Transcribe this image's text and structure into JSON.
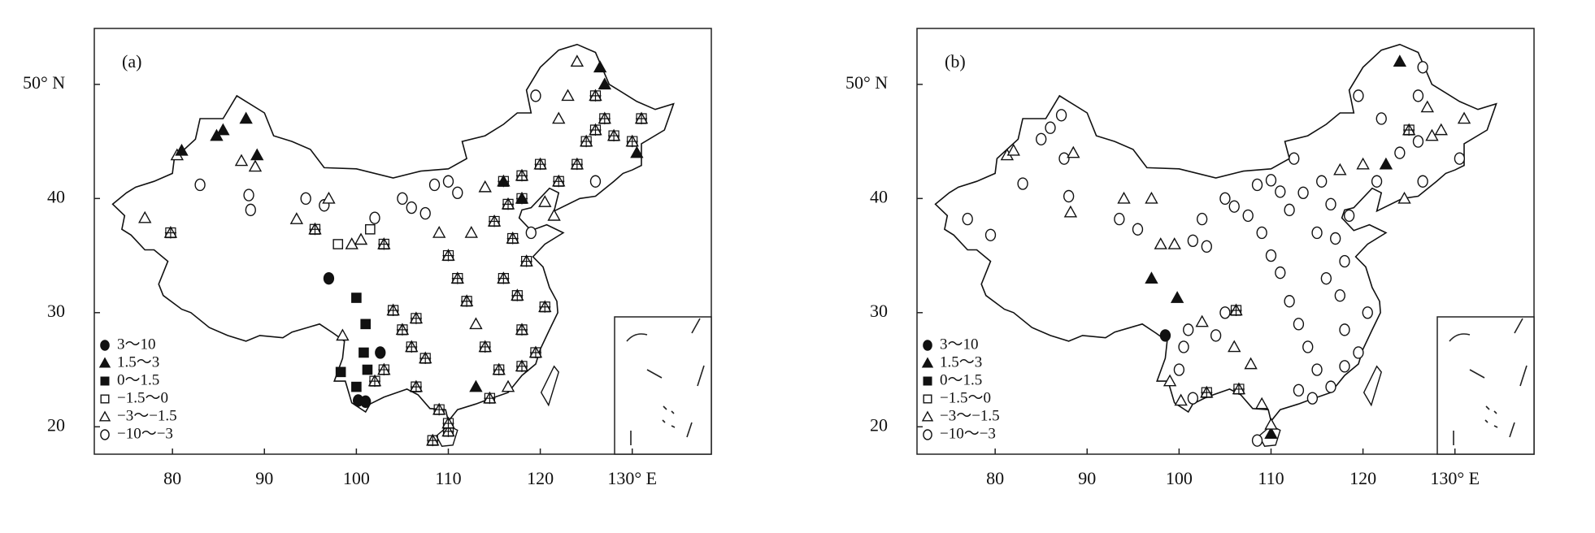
{
  "xlim": [
    71.5,
    138.6
  ],
  "ylim": [
    17.6,
    54.9
  ],
  "xticks": [
    80,
    90,
    100,
    110,
    120,
    {
      "value": 130,
      "label": "130° E"
    }
  ],
  "yticks": [
    20,
    30,
    40,
    {
      "value": 50,
      "label": "50° N"
    }
  ],
  "legend": [
    {
      "label": "3～10",
      "shape": "filled-circle"
    },
    {
      "label": "1.5～3",
      "shape": "filled-triangle"
    },
    {
      "label": "0～1.5",
      "shape": "filled-square"
    },
    {
      "label": "−1.5～0",
      "shape": "square"
    },
    {
      "label": "−3～−1.5",
      "shape": "triangle"
    },
    {
      "label": "−10～−3",
      "shape": "circle"
    }
  ],
  "panels": [
    {
      "label": "(a)",
      "stations": [
        [
          77,
          38.3,
          4
        ],
        [
          79.8,
          37,
          4,
          1
        ],
        [
          80.5,
          43.8,
          4
        ],
        [
          81,
          44.2,
          1
        ],
        [
          83,
          41.2,
          5
        ],
        [
          84.8,
          45.5,
          1
        ],
        [
          85.5,
          46,
          1
        ],
        [
          87.5,
          43.3,
          4
        ],
        [
          88,
          47,
          1
        ],
        [
          89,
          42.8,
          4
        ],
        [
          89.2,
          43.8,
          1
        ],
        [
          88.3,
          40.3,
          5
        ],
        [
          88.5,
          39,
          5
        ],
        [
          93.5,
          38.2,
          4
        ],
        [
          94.5,
          40,
          5
        ],
        [
          95.5,
          37.3,
          4,
          1
        ],
        [
          96.5,
          39.4,
          5
        ],
        [
          97,
          40,
          4
        ],
        [
          98,
          36,
          3
        ],
        [
          99.5,
          36,
          4
        ],
        [
          100.5,
          36.4,
          4
        ],
        [
          101.5,
          37.3,
          3
        ],
        [
          102,
          38.3,
          5
        ],
        [
          103,
          36,
          4,
          1
        ],
        [
          97,
          33,
          0
        ],
        [
          98.5,
          28,
          4
        ],
        [
          100,
          31.3,
          2
        ],
        [
          101,
          29,
          2
        ],
        [
          100.8,
          26.5,
          2
        ],
        [
          101.2,
          25,
          2
        ],
        [
          102.6,
          26.5,
          0
        ],
        [
          98.3,
          24.8,
          2
        ],
        [
          100,
          23.5,
          2
        ],
        [
          100.2,
          22.3,
          0
        ],
        [
          101,
          22.2,
          0
        ],
        [
          102,
          24,
          4,
          1
        ],
        [
          103,
          25,
          4,
          1
        ],
        [
          104,
          30.2,
          4,
          1
        ],
        [
          105,
          28.5,
          4,
          1
        ],
        [
          106.5,
          29.5,
          4,
          1
        ],
        [
          106,
          27,
          4,
          1
        ],
        [
          107.5,
          26,
          4,
          1
        ],
        [
          106.5,
          23.5,
          4,
          1
        ],
        [
          109,
          21.5,
          4,
          1
        ],
        [
          108.3,
          18.8,
          4,
          1
        ],
        [
          110,
          19.6,
          4,
          1
        ],
        [
          110,
          20.3,
          4,
          1
        ],
        [
          105,
          40,
          5
        ],
        [
          106,
          39.2,
          5
        ],
        [
          107.5,
          38.7,
          5
        ],
        [
          108.5,
          41.2,
          5
        ],
        [
          110,
          41.5,
          5
        ],
        [
          111,
          40.5,
          5
        ],
        [
          112.5,
          37,
          4
        ],
        [
          109,
          37,
          4
        ],
        [
          110,
          35,
          4,
          1
        ],
        [
          111,
          33,
          4,
          1
        ],
        [
          112,
          31,
          4,
          1
        ],
        [
          113,
          29,
          4
        ],
        [
          114,
          27,
          4,
          1
        ],
        [
          115.5,
          25,
          4,
          1
        ],
        [
          113,
          23.5,
          1
        ],
        [
          114.5,
          22.5,
          4,
          1
        ],
        [
          116.5,
          23.5,
          4
        ],
        [
          118,
          25.3,
          4,
          1
        ],
        [
          119.5,
          26.5,
          4,
          1
        ],
        [
          118,
          28.5,
          4,
          1
        ],
        [
          120.5,
          30.5,
          4,
          1
        ],
        [
          117.5,
          31.5,
          4,
          1
        ],
        [
          116,
          33,
          4,
          1
        ],
        [
          118.5,
          34.5,
          4,
          1
        ],
        [
          117,
          36.5,
          4,
          1
        ],
        [
          119,
          37,
          5
        ],
        [
          115,
          38,
          4,
          1
        ],
        [
          116.5,
          39.5,
          4,
          1
        ],
        [
          114,
          41,
          4
        ],
        [
          116,
          41.5,
          1,
          1
        ],
        [
          118,
          42,
          4,
          1
        ],
        [
          120,
          43,
          4,
          1
        ],
        [
          122,
          41.5,
          4,
          1
        ],
        [
          121.5,
          38.5,
          4
        ],
        [
          124,
          43,
          4,
          1
        ],
        [
          125,
          45,
          4,
          1
        ],
        [
          126,
          46,
          4,
          1
        ],
        [
          127,
          47,
          4,
          1
        ],
        [
          128,
          45.5,
          4,
          1
        ],
        [
          130,
          45,
          4,
          1
        ],
        [
          131,
          47,
          4,
          1
        ],
        [
          126,
          49,
          4,
          1
        ],
        [
          126.5,
          51.5,
          1
        ],
        [
          124,
          52,
          4
        ],
        [
          127,
          50,
          1
        ],
        [
          119.5,
          49,
          5
        ],
        [
          122,
          47,
          4
        ],
        [
          123,
          49,
          4
        ],
        [
          126,
          41.5,
          5
        ],
        [
          130.5,
          44,
          1
        ],
        [
          118,
          40,
          1,
          1
        ],
        [
          120.5,
          39.7,
          4
        ]
      ]
    },
    {
      "label": "(b)",
      "stations": [
        [
          77,
          38.2,
          5
        ],
        [
          79.5,
          36.8,
          5
        ],
        [
          81.3,
          43.8,
          4
        ],
        [
          82,
          44.2,
          4
        ],
        [
          83,
          41.3,
          5
        ],
        [
          85,
          45.2,
          5
        ],
        [
          86,
          46.2,
          5
        ],
        [
          87.2,
          47.3,
          5
        ],
        [
          87.5,
          43.5,
          5
        ],
        [
          88.5,
          44,
          4
        ],
        [
          88,
          40.2,
          5
        ],
        [
          88.2,
          38.8,
          4
        ],
        [
          93.5,
          38.2,
          5
        ],
        [
          94,
          40,
          4
        ],
        [
          95.5,
          37.3,
          5
        ],
        [
          97,
          40,
          4
        ],
        [
          98,
          36,
          4
        ],
        [
          99.5,
          36,
          4
        ],
        [
          101.5,
          36.3,
          5
        ],
        [
          102.5,
          38.2,
          5
        ],
        [
          103,
          35.8,
          5
        ],
        [
          97,
          33,
          1
        ],
        [
          99.8,
          31.3,
          1
        ],
        [
          98.5,
          28,
          0
        ],
        [
          100.5,
          27,
          5
        ],
        [
          100,
          25,
          5
        ],
        [
          99,
          24,
          4
        ],
        [
          100.2,
          22.3,
          4
        ],
        [
          101.5,
          22.5,
          5
        ],
        [
          101,
          28.5,
          5
        ],
        [
          102.5,
          29.2,
          4
        ],
        [
          103,
          23,
          4,
          1
        ],
        [
          104,
          28,
          5
        ],
        [
          105,
          30,
          5
        ],
        [
          106.2,
          30.2,
          4,
          1
        ],
        [
          106,
          27,
          4
        ],
        [
          107.8,
          25.5,
          4
        ],
        [
          106.5,
          23.3,
          4,
          1
        ],
        [
          109,
          22,
          4
        ],
        [
          108.5,
          18.8,
          5
        ],
        [
          110,
          19.4,
          1
        ],
        [
          110,
          20.2,
          4
        ],
        [
          105,
          40,
          5
        ],
        [
          106,
          39.3,
          5
        ],
        [
          107.5,
          38.5,
          5
        ],
        [
          108.5,
          41.2,
          5
        ],
        [
          110,
          41.6,
          5
        ],
        [
          111,
          40.6,
          5
        ],
        [
          112,
          39,
          5
        ],
        [
          113.5,
          40.5,
          5
        ],
        [
          115.5,
          41.5,
          5
        ],
        [
          109,
          37,
          5
        ],
        [
          110,
          35,
          5
        ],
        [
          111,
          33.5,
          5
        ],
        [
          112,
          31,
          5
        ],
        [
          113,
          29,
          5
        ],
        [
          114,
          27,
          5
        ],
        [
          115,
          25,
          5
        ],
        [
          113,
          23.2,
          5
        ],
        [
          114.5,
          22.5,
          5
        ],
        [
          116.5,
          23.5,
          5
        ],
        [
          118,
          25.3,
          5
        ],
        [
          119.5,
          26.5,
          5
        ],
        [
          118,
          28.5,
          5
        ],
        [
          120.5,
          30,
          5
        ],
        [
          117.5,
          31.5,
          5
        ],
        [
          116,
          33,
          5
        ],
        [
          118,
          34.5,
          5
        ],
        [
          117,
          36.5,
          5
        ],
        [
          118.5,
          38.5,
          5
        ],
        [
          116.5,
          39.5,
          5
        ],
        [
          115,
          37,
          5
        ],
        [
          117.5,
          42.5,
          4
        ],
        [
          120,
          43,
          4
        ],
        [
          121.5,
          41.5,
          5
        ],
        [
          122.5,
          43,
          1
        ],
        [
          124,
          44,
          5
        ],
        [
          125,
          46,
          4,
          1
        ],
        [
          126,
          45,
          5
        ],
        [
          127.5,
          45.5,
          4
        ],
        [
          128.5,
          46,
          4
        ],
        [
          126,
          49,
          5
        ],
        [
          126.5,
          51.5,
          5
        ],
        [
          124,
          52,
          1
        ],
        [
          127,
          48,
          4
        ],
        [
          119.5,
          49,
          5
        ],
        [
          122,
          47,
          5
        ],
        [
          124.5,
          40,
          4
        ],
        [
          126.5,
          41.5,
          5
        ],
        [
          130.5,
          43.5,
          5
        ],
        [
          131,
          47,
          4
        ],
        [
          112.5,
          43.5,
          5
        ]
      ]
    }
  ]
}
